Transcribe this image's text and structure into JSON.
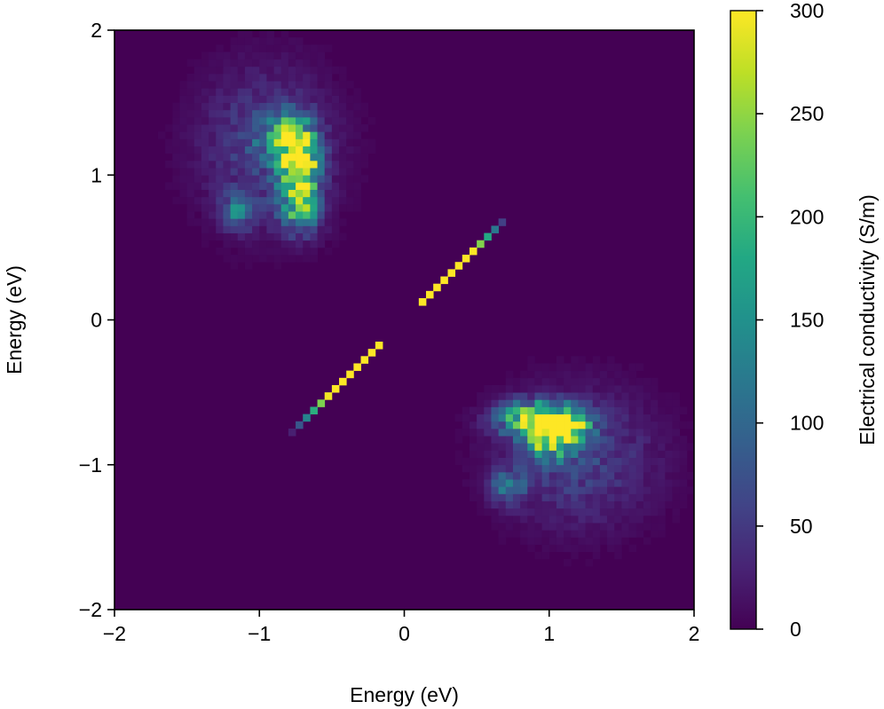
{
  "chart_data": {
    "type": "heatmap",
    "title": "",
    "xlabel": "Energy (eV)",
    "ylabel": "Energy (eV)",
    "xlim": [
      -2,
      2
    ],
    "ylim": [
      -2,
      2
    ],
    "x_ticks": [
      -2,
      -1,
      0,
      1,
      2
    ],
    "y_ticks": [
      -2,
      -1,
      0,
      1,
      2
    ],
    "x_tick_labels": [
      "−2",
      "−1",
      "0",
      "1",
      "2"
    ],
    "y_tick_labels": [
      "−2",
      "−1",
      "0",
      "1",
      "2"
    ],
    "grid_bins": 80,
    "colormap": "viridis",
    "background_value": 0,
    "colorbar": {
      "label": "Electrical conductivity (S/m)",
      "range": [
        0,
        300
      ],
      "ticks": [
        0,
        50,
        100,
        150,
        200,
        250,
        300
      ],
      "tick_labels": [
        "0",
        "50",
        "100",
        "150",
        "200",
        "250",
        "300"
      ]
    },
    "features": [
      {
        "kind": "blob",
        "center_x": -0.72,
        "center_y": 1.06,
        "peak_value": 300,
        "sigma_x": 0.08,
        "sigma_y": 0.14
      },
      {
        "kind": "blob",
        "center_x": -0.8,
        "center_y": 1.25,
        "peak_value": 180,
        "sigma_x": 0.12,
        "sigma_y": 0.12
      },
      {
        "kind": "blob",
        "center_x": -0.72,
        "center_y": 0.78,
        "peak_value": 160,
        "sigma_x": 0.1,
        "sigma_y": 0.12
      },
      {
        "kind": "blob",
        "center_x": -1.15,
        "center_y": 0.75,
        "peak_value": 110,
        "sigma_x": 0.08,
        "sigma_y": 0.08
      },
      {
        "kind": "blob",
        "center_x": -0.95,
        "center_y": 1.2,
        "peak_value": 60,
        "sigma_x": 0.3,
        "sigma_y": 0.35
      },
      {
        "kind": "blob",
        "center_x": 1.06,
        "center_y": -0.72,
        "peak_value": 300,
        "sigma_x": 0.14,
        "sigma_y": 0.08
      },
      {
        "kind": "blob",
        "center_x": 0.85,
        "center_y": -0.68,
        "peak_value": 180,
        "sigma_x": 0.15,
        "sigma_y": 0.08
      },
      {
        "kind": "blob",
        "center_x": 1.0,
        "center_y": -0.85,
        "peak_value": 170,
        "sigma_x": 0.1,
        "sigma_y": 0.08
      },
      {
        "kind": "blob",
        "center_x": 0.72,
        "center_y": -1.15,
        "peak_value": 110,
        "sigma_x": 0.08,
        "sigma_y": 0.08
      },
      {
        "kind": "blob",
        "center_x": 1.2,
        "center_y": -0.95,
        "peak_value": 60,
        "sigma_x": 0.35,
        "sigma_y": 0.3
      },
      {
        "kind": "diagonal",
        "from_x": 0.1,
        "to_x": 0.72,
        "peak_value": 300,
        "tail_from_x": 0.48
      },
      {
        "kind": "diagonal",
        "from_x": -0.8,
        "to_x": -0.15,
        "peak_value": 300,
        "tail_to_x": -0.52
      }
    ]
  }
}
